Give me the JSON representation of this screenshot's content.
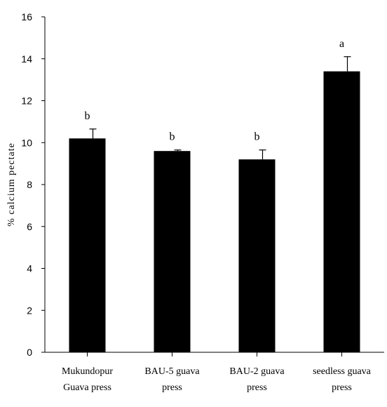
{
  "chart_data": {
    "type": "bar",
    "title": "",
    "xlabel": "",
    "ylabel": "% calcium pectate",
    "ylim": [
      0,
      16
    ],
    "yticks": [
      0,
      2,
      4,
      6,
      8,
      10,
      12,
      14,
      16
    ],
    "categories": [
      [
        "Mukundopur",
        "Guava press"
      ],
      [
        "BAU-5 guava",
        "press"
      ],
      [
        "BAU-2 guava",
        "press"
      ],
      [
        "seedless guava",
        "press"
      ]
    ],
    "values": [
      10.2,
      9.6,
      9.2,
      13.4
    ],
    "errors": [
      0.45,
      0.05,
      0.45,
      0.7
    ],
    "significance": [
      "b",
      "b",
      "b",
      "a"
    ],
    "bar_color": "#000000",
    "grid": false,
    "legend": "none"
  }
}
